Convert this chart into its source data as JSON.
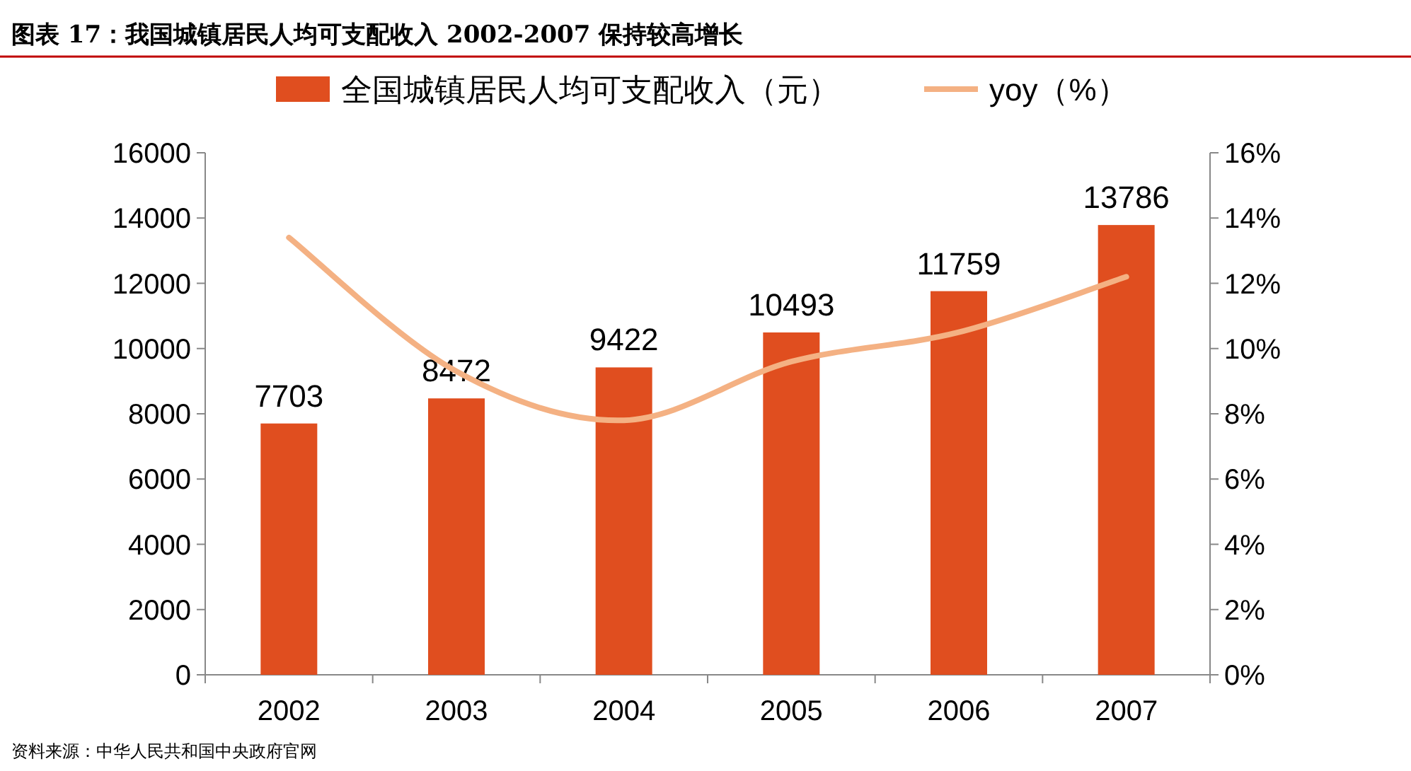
{
  "chart_data": {
    "type": "bar",
    "title": "图表 17：我国城镇居民人均可支配收入 2002-2007 保持较高增长",
    "categories": [
      "2002",
      "2003",
      "2004",
      "2005",
      "2006",
      "2007"
    ],
    "series": [
      {
        "name": "全国城镇居民人均可支配收入（元）",
        "color": "#e04e1f",
        "values": [
          7703,
          8472,
          9422,
          10493,
          11759,
          13786
        ],
        "value_labels": [
          "7703",
          "8472",
          "9422",
          "10493",
          "11759",
          "13786"
        ]
      },
      {
        "name": "yoy（%）",
        "type": "line",
        "axis": "y2",
        "color": "#f4b183",
        "values": [
          13.4,
          9.3,
          7.8,
          9.6,
          10.5,
          12.2
        ]
      }
    ],
    "ylim": [
      0,
      16000
    ],
    "yticks": [
      0,
      2000,
      4000,
      6000,
      8000,
      10000,
      12000,
      14000,
      16000
    ],
    "y2lim": [
      0,
      16
    ],
    "y2ticks": [
      {
        "value": 0,
        "label": "0%"
      },
      {
        "value": 2,
        "label": "2%"
      },
      {
        "value": 4,
        "label": "4%"
      },
      {
        "value": 6,
        "label": "6%"
      },
      {
        "value": 8,
        "label": "8%"
      },
      {
        "value": 10,
        "label": "10%"
      },
      {
        "value": 12,
        "label": "12%"
      },
      {
        "value": 14,
        "label": "14%"
      },
      {
        "value": 16,
        "label": "16%"
      }
    ],
    "legend": "top",
    "marker": "none",
    "annotations": [
      "资料来源：中华人民共和国中央政府官网"
    ]
  }
}
